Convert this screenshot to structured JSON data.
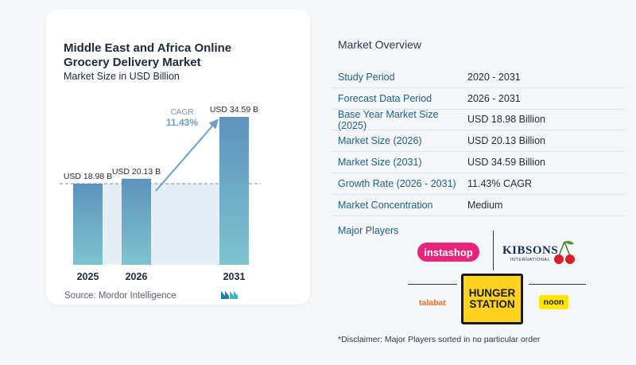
{
  "chart_data": {
    "type": "bar",
    "title": "Middle East and Africa Online Grocery Delivery Market",
    "subtitle": "Market Size in USD Billion",
    "categories": [
      "2025",
      "2026",
      "2031"
    ],
    "values": [
      18.98,
      20.13,
      34.59
    ],
    "value_labels": [
      "USD 18.98 B",
      "USD 20.13 B",
      "USD 34.59 B"
    ],
    "cagr_label": "CAGR",
    "cagr_value": "11.43%",
    "colors": {
      "bar_top": "#5d93bd",
      "bar_bottom": "#7fc3cf",
      "arrow": "#6b9fc8",
      "reference_area": "#e4eef5",
      "reference_line": "#7e8a99"
    },
    "ylim": [
      0,
      34.59
    ],
    "grid": false
  },
  "source": "Source:  Mordor Intelligence",
  "brand_logo_icon": "mordor-intelligence-logo-icon",
  "overview": {
    "title": "Market Overview",
    "rows": [
      {
        "key": "Study Period",
        "value": "2020 - 2031"
      },
      {
        "key": "Forecast Data Period",
        "value": "2026 - 2031"
      },
      {
        "key": "Base Year Market Size (2025)",
        "value": "USD 18.98 Billion"
      },
      {
        "key": "Market Size (2026)",
        "value": "USD 20.13 Billion"
      },
      {
        "key": "Market Size (2031)",
        "value": "USD 34.59 Billion"
      },
      {
        "key": "Growth Rate (2026 - 2031)",
        "value": "11.43% CAGR"
      },
      {
        "key": "Market Concentration",
        "value": "Medium"
      }
    ]
  },
  "players": {
    "title": "Major Players",
    "instashop": "instashop",
    "kibsons": "KIBSONS",
    "kibsons_sub": "INTERNATIONAL",
    "hunger_line1": "HUNGER",
    "hunger_line2": "STATION",
    "talabat": "talabat",
    "noon": "noon"
  },
  "disclaimer": "*Disclaimer: Major Players sorted in no particular order"
}
